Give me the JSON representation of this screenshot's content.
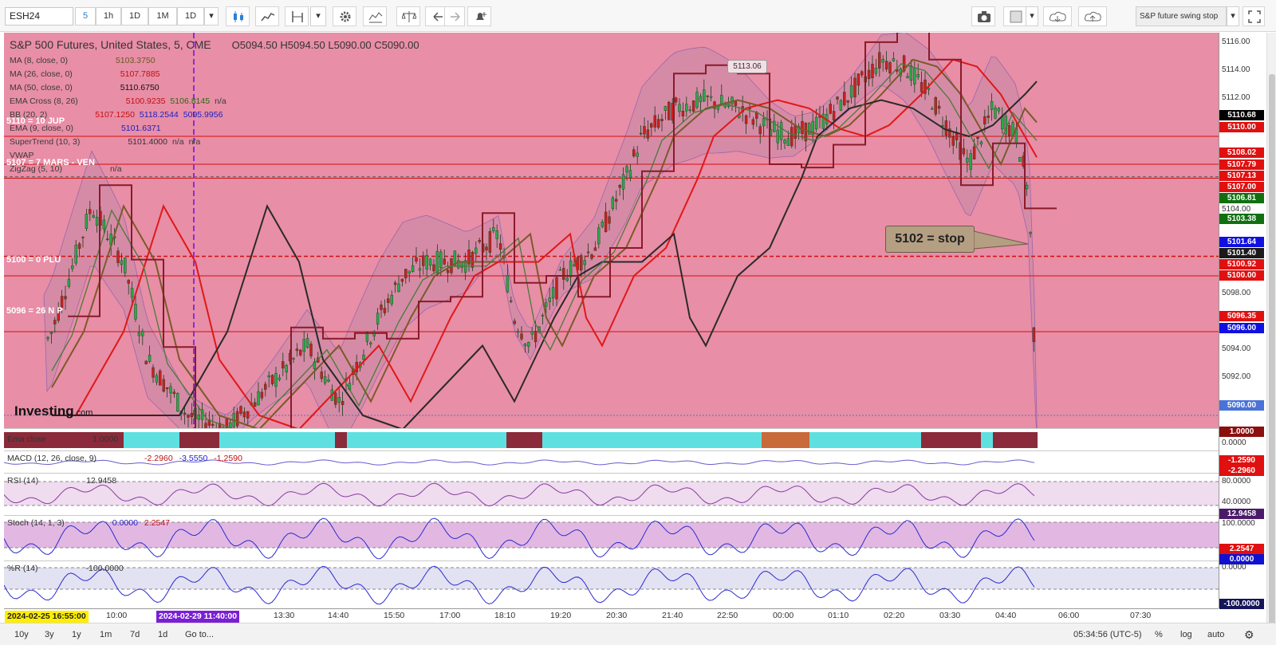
{
  "toolbar": {
    "symbol": "ESH24",
    "intervals": [
      "5",
      "1h",
      "1D",
      "1M",
      "1D"
    ],
    "layout_name": "S&P future swing stop"
  },
  "chart": {
    "title": "S&P 500 Futures, United States, 5, CME",
    "ohlc": "O5094.50  H5094.50  L5090.00  C5090.00",
    "indicators": [
      {
        "name": "MA (8, close, 0)",
        "values": [
          "5103.3750"
        ]
      },
      {
        "name": "MA (26, close, 0)",
        "values": [
          "5107.7885"
        ]
      },
      {
        "name": "MA (50, close, 0)",
        "values": [
          "5110.6750"
        ]
      },
      {
        "name": "EMA Cross (8, 26)",
        "values": [
          "5100.9235",
          "5106.8145",
          "n/a"
        ]
      },
      {
        "name": "BB (20, 2)",
        "values": [
          "5107.1250",
          "5118.2544",
          "5095.9956"
        ]
      },
      {
        "name": "EMA (9, close, 0)",
        "values": [
          "5101.6371"
        ]
      },
      {
        "name": "SuperTrend (10, 3)",
        "values": [
          "5101.4000",
          "n/a",
          "n/a"
        ]
      },
      {
        "name": "VWAP",
        "values": []
      },
      {
        "name": "ZigZag (5, 10)",
        "values": [
          "n/a"
        ]
      }
    ],
    "level_labels": {
      "l5110": "5110 = 10 JUP",
      "l5107": "5107 = 7 MARS - VEN",
      "l5100": "5100 = 0 PLU",
      "l5096": "5096 = 26 N P"
    },
    "stop_callout": "5102 = stop",
    "price_bubble": "5113.06",
    "brand": "Investing",
    "brand_suffix": ".com"
  },
  "price_axis": {
    "ticks": [
      "5116.00",
      "5114.00",
      "5112.00",
      "5104.00",
      "5098.00",
      "5094.00",
      "5092.00"
    ],
    "tags": [
      {
        "text": "5110.68",
        "color": "#000000"
      },
      {
        "text": "5110.00",
        "color": "#e01010"
      },
      {
        "text": "5108.02",
        "color": "#e01010"
      },
      {
        "text": "5107.79",
        "color": "#e01010"
      },
      {
        "text": "5107.13",
        "color": "#e01010"
      },
      {
        "text": "5107.00",
        "color": "#e01010"
      },
      {
        "text": "5106.81",
        "color": "#107010"
      },
      {
        "text": "5103.38",
        "color": "#107010"
      },
      {
        "text": "5101.64",
        "color": "#1010e0"
      },
      {
        "text": "5101.40",
        "color": "#1a1a1a"
      },
      {
        "text": "5100.92",
        "color": "#e01010"
      },
      {
        "text": "5100.00",
        "color": "#e01010"
      },
      {
        "text": "5096.35",
        "color": "#e01010"
      },
      {
        "text": "5096.00",
        "color": "#1010e0"
      },
      {
        "text": "5090.00",
        "color": "#4a73d8"
      }
    ]
  },
  "panes": {
    "ema_close": {
      "label": "Ema close",
      "value": "1.0000",
      "axis_tag": "1.0000",
      "axis_tick": "0.0000"
    },
    "macd": {
      "label": "MACD (12, 26, close, 9)",
      "values": [
        "-2.2960",
        "-3.5550",
        "-1.2590"
      ],
      "axis_tags": [
        "-1.2590",
        "-2.2960"
      ]
    },
    "rsi": {
      "label": "RSI (14)",
      "value": "12.9458",
      "axis_ticks": [
        "80.0000",
        "40.0000"
      ],
      "axis_tag": "12.9458"
    },
    "stoch": {
      "label": "Stoch (14, 1, 3)",
      "values": [
        "0.0000",
        "2.2547"
      ],
      "axis_ticks": [
        "100.0000"
      ],
      "axis_tags": [
        "2.2547",
        "0.0000"
      ]
    },
    "wr": {
      "label": "%R (14)",
      "value": "-100.0000",
      "axis_ticks": [
        "0.0000"
      ],
      "axis_tag": "-100.0000"
    }
  },
  "time_axis": {
    "ticks": [
      "10:00",
      "13:30",
      "14:40",
      "15:50",
      "17:00",
      "18:10",
      "19:20",
      "20:30",
      "21:40",
      "22:50",
      "00:00",
      "01:10",
      "02:20",
      "03:30",
      "04:40",
      "06:00",
      "07:30"
    ],
    "start_stamp": "2024-02-25 16:55:00",
    "cursor_stamp": "2024-02-29 11:40:00"
  },
  "bottom_bar": {
    "ranges": [
      "10y",
      "3y",
      "1y",
      "1m",
      "7d",
      "1d"
    ],
    "goto": "Go to...",
    "clock": "05:34:56 (UTC-5)",
    "options": [
      "%",
      "log",
      "auto"
    ]
  }
}
